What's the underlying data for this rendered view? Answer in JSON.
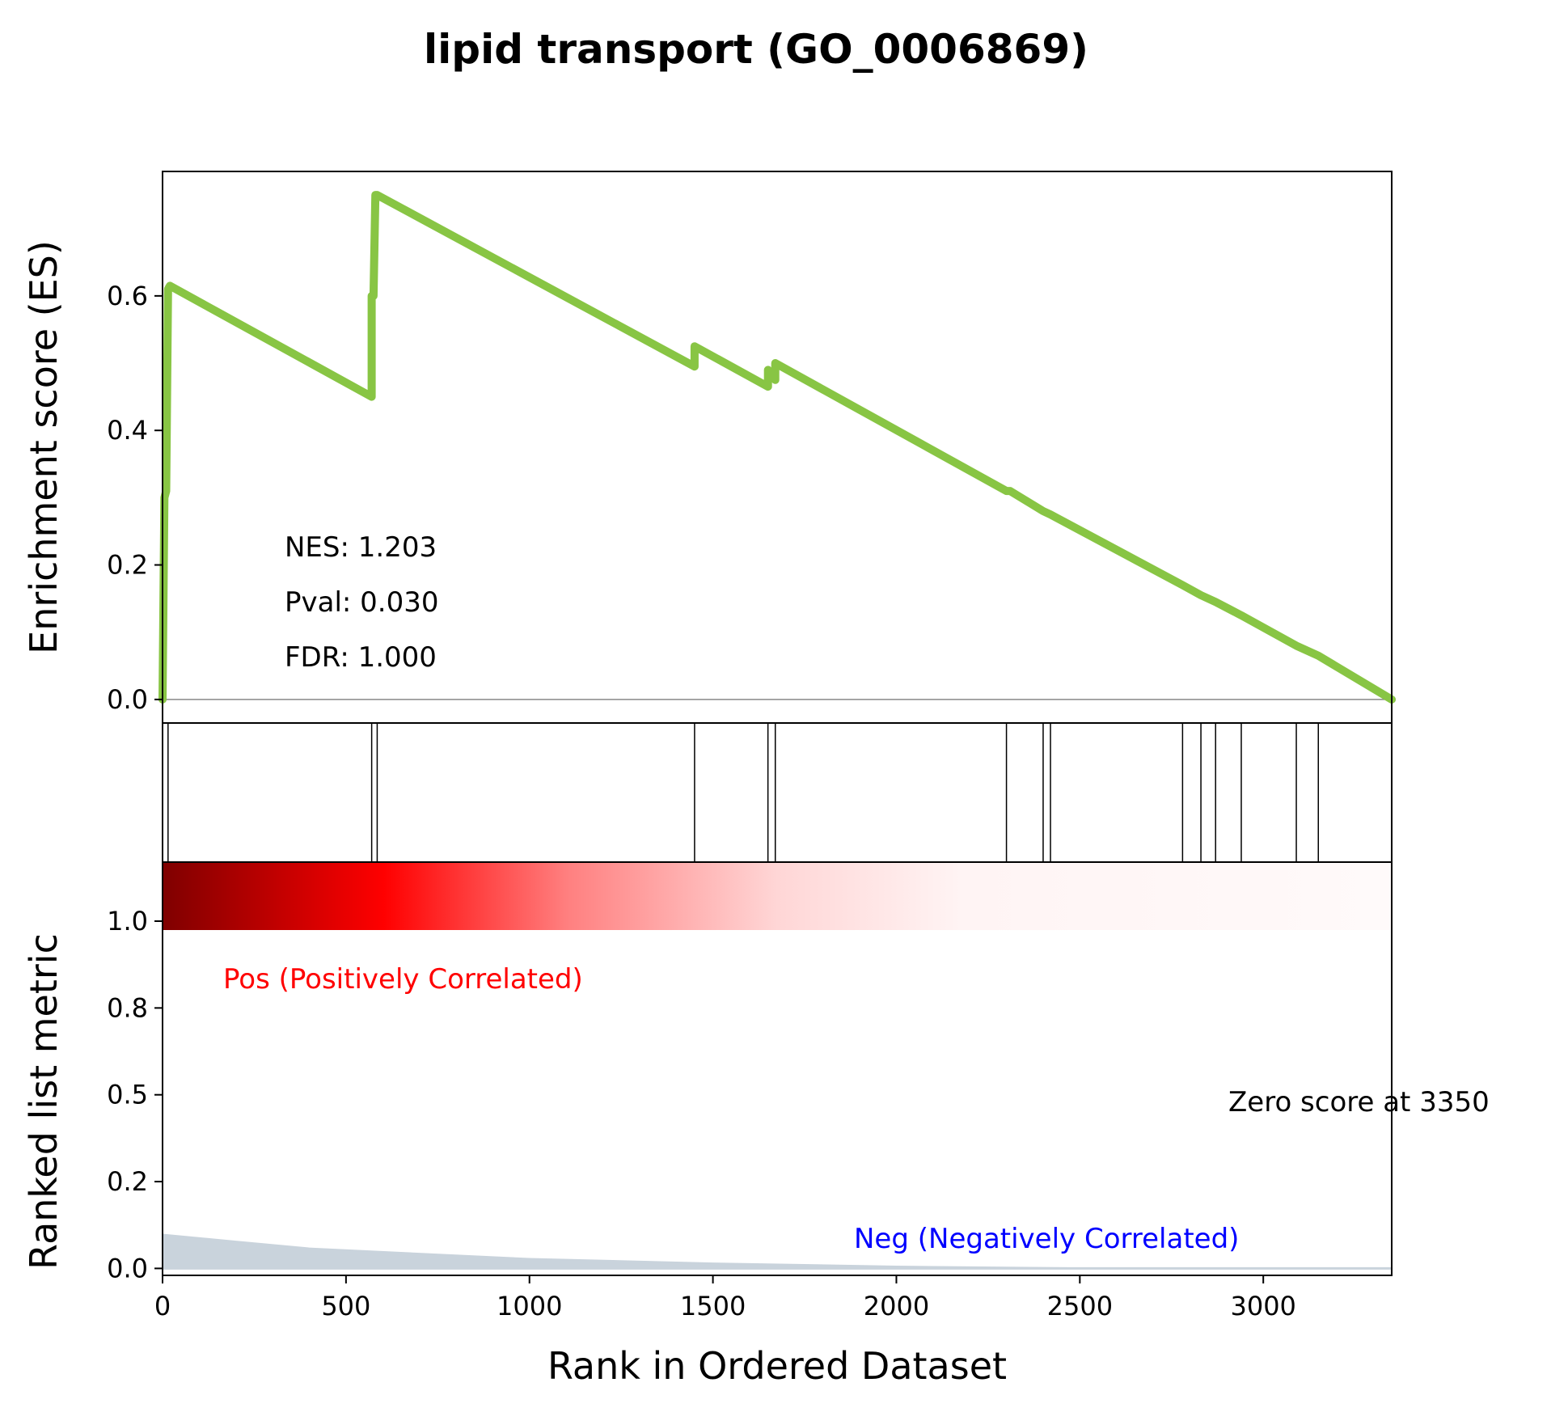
{
  "chart_data": {
    "type": "line",
    "title": "lipid transport (GO_0006869)",
    "xlabel": "Rank in Ordered Dataset",
    "es_panel": {
      "ylabel": "Enrichment score (ES)",
      "ylim": [
        -0.035,
        0.785
      ],
      "yticks": [
        0.0,
        0.2,
        0.4,
        0.6
      ],
      "ytick_labels": [
        "0.0",
        "0.2",
        "0.4",
        "0.6"
      ],
      "line_color": "#88c544",
      "series": [
        {
          "x": [
            0,
            5,
            10,
            15,
            20,
            570,
            570,
            575,
            580,
            585,
            1450,
            1450,
            1650,
            1650,
            1670,
            1670,
            2300,
            2310,
            2400,
            2420,
            2780,
            2830,
            2870,
            2940,
            3090,
            3150,
            3350
          ],
          "y": [
            0.0,
            0.3,
            0.31,
            0.61,
            0.615,
            0.45,
            0.6,
            0.6,
            0.75,
            0.75,
            0.495,
            0.525,
            0.465,
            0.49,
            0.475,
            0.5,
            0.31,
            0.31,
            0.28,
            0.275,
            0.17,
            0.155,
            0.145,
            0.125,
            0.08,
            0.065,
            0.0
          ]
        }
      ],
      "annotations": [
        "NES: 1.203",
        "Pval: 0.030",
        "FDR: 1.000"
      ]
    },
    "hits": [
      15,
      570,
      585,
      1450,
      1650,
      1670,
      2300,
      2400,
      2420,
      2780,
      2830,
      2870,
      2940,
      3090,
      3150
    ],
    "heatmap": {
      "colormap": "seismic-red",
      "direction": "positive to zero"
    },
    "rank_panel": {
      "ylabel": "Ranked list metric",
      "ylim": [
        -0.02,
        1.17
      ],
      "yticks": [
        0.0,
        0.25,
        0.5,
        0.75,
        1.0
      ],
      "ytick_labels": [
        "0.0",
        "0.2",
        "0.5",
        "0.8",
        "1.0"
      ],
      "fill_color": "#c9d3dc",
      "series": [
        {
          "x": [
            0,
            200,
            400,
            700,
            1000,
            1500,
            2000,
            2500,
            3000,
            3350
          ],
          "y": [
            0.1,
            0.08,
            0.06,
            0.045,
            0.03,
            0.017,
            0.008,
            0.003,
            0.001,
            0.0
          ]
        }
      ],
      "annotations": {
        "pos": "Pos (Positively Correlated)",
        "neg": "Neg (Negatively Correlated)",
        "zero": "Zero score at 3350"
      },
      "pos_color": "#ff0000",
      "neg_color": "#0000ff"
    },
    "xlim": [
      0,
      3350
    ],
    "xticks": [
      0,
      500,
      1000,
      1500,
      2000,
      2500,
      3000
    ],
    "xtick_labels": [
      "0",
      "500",
      "1000",
      "1500",
      "2000",
      "2500",
      "3000"
    ]
  }
}
